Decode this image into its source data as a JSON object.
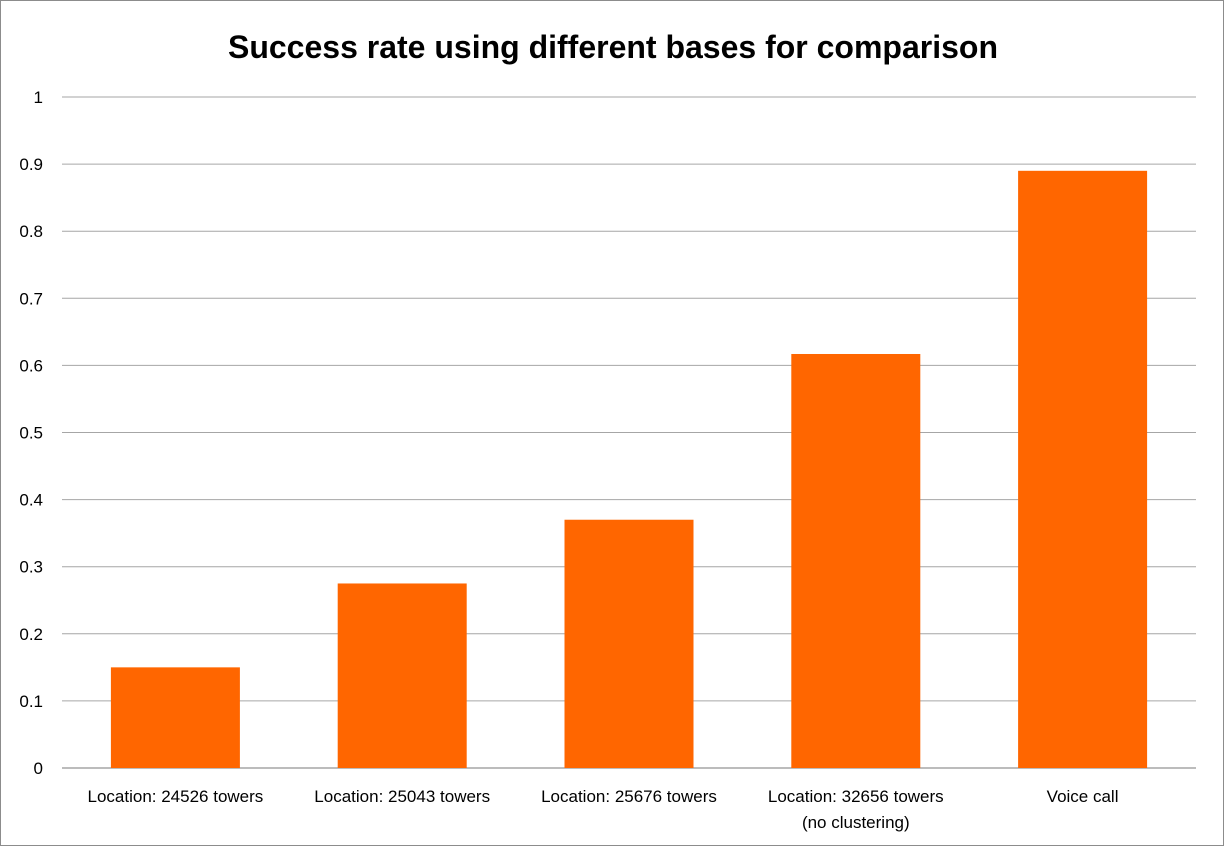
{
  "chart_data": {
    "type": "bar",
    "title": "Success rate using different bases for comparison",
    "xlabel": "",
    "ylabel": "",
    "categories": [
      [
        "Location: 24526 towers"
      ],
      [
        "Location: 25043 towers"
      ],
      [
        "Location: 25676 towers"
      ],
      [
        "Location: 32656 towers",
        "(no clustering)"
      ],
      [
        "Voice call"
      ]
    ],
    "values": [
      0.15,
      0.275,
      0.37,
      0.617,
      0.89
    ],
    "ylim": [
      0,
      1
    ],
    "yticks": [
      "0",
      "0.1",
      "0.2",
      "0.3",
      "0.4",
      "0.5",
      "0.6",
      "0.7",
      "0.8",
      "0.9",
      "1"
    ],
    "grid": true,
    "legend": "none",
    "bar_color": "#ff6600",
    "grid_color": "#a6a6a6"
  }
}
